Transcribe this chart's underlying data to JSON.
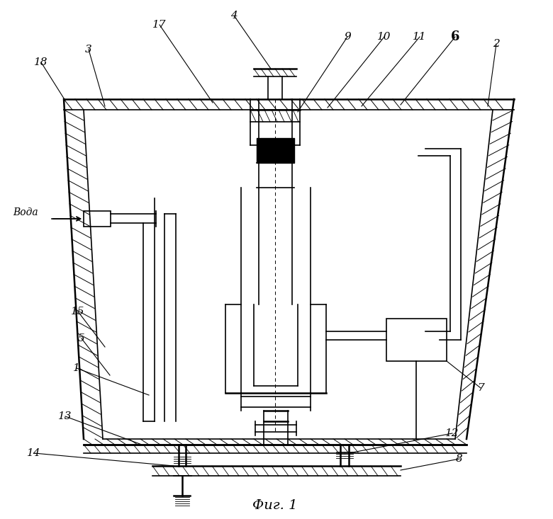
{
  "bg_color": "#ffffff",
  "line_color": "#000000",
  "caption": "Фиг. 1"
}
